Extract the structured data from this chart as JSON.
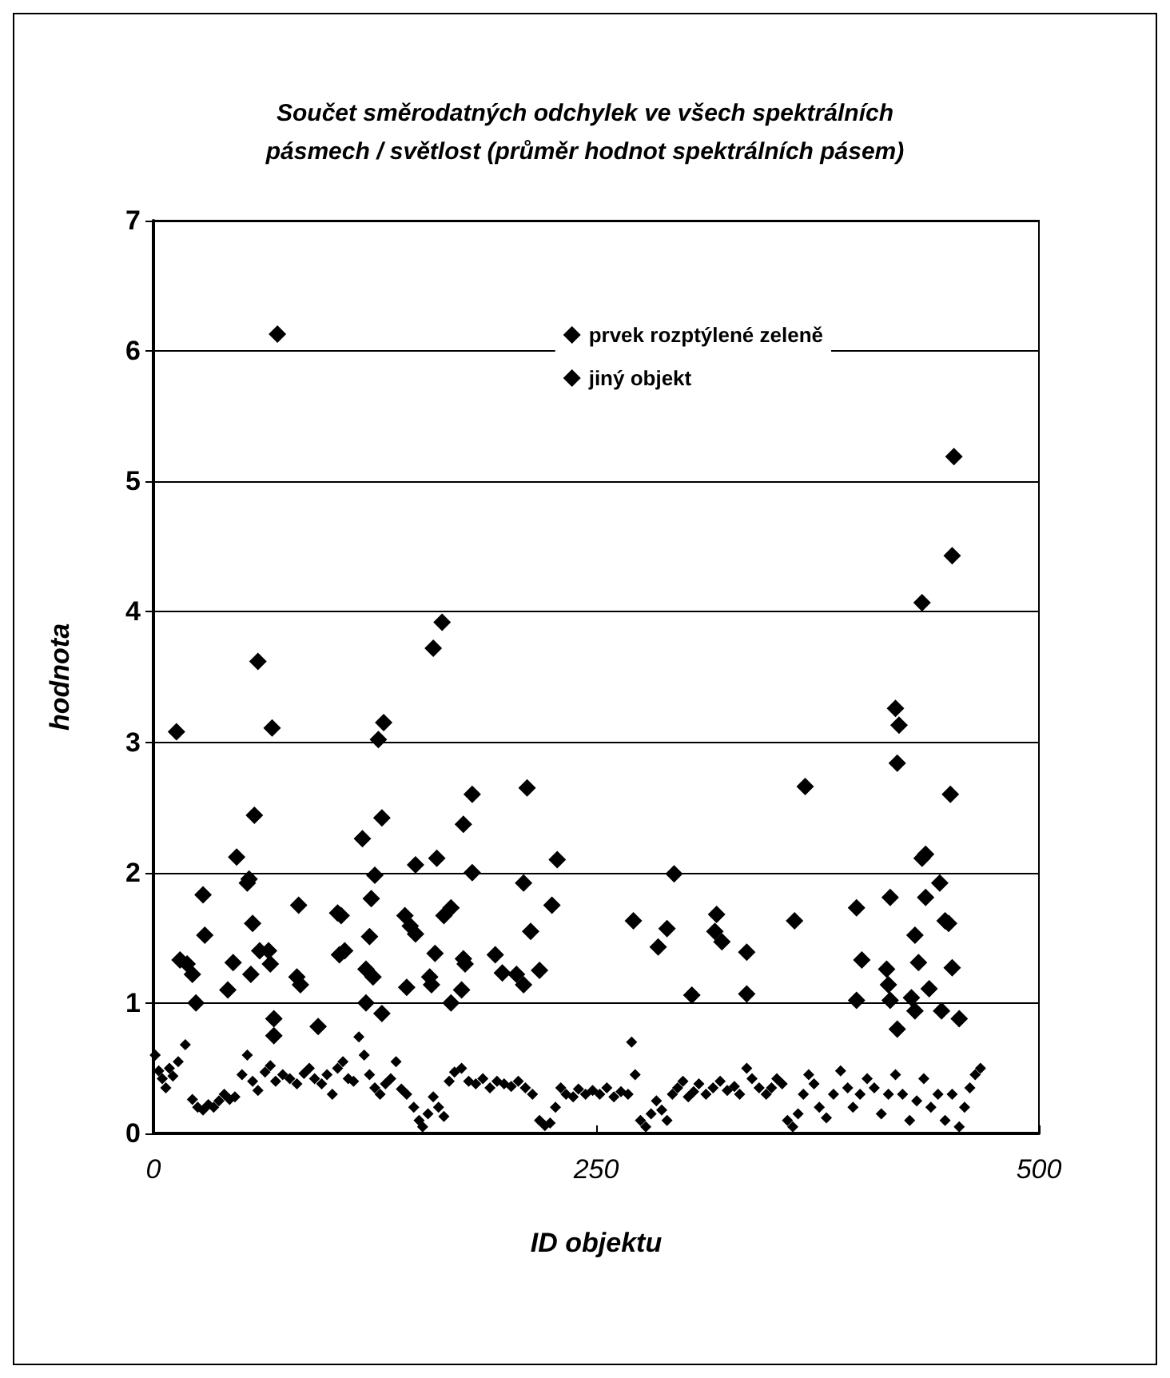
{
  "chart_data": {
    "type": "scatter",
    "title": "Součet směrodatných odchylek ve všech spektrálních\npásmech / světlost (průměr hodnot spektrálních pásem)",
    "xlabel": "ID objektu",
    "ylabel": "hodnota",
    "xlim": [
      0,
      500
    ],
    "xticks": [
      0,
      250,
      500
    ],
    "ylim": [
      0,
      7
    ],
    "yticks": [
      0,
      1,
      2,
      3,
      4,
      5,
      6,
      7
    ],
    "grid": "y",
    "legend": "top right",
    "marker": "diamond",
    "series": [
      {
        "name": "prvek rozptýlené zeleně",
        "color": "#000000",
        "x": [
          13,
          15,
          19,
          22,
          24,
          28,
          29,
          42,
          45,
          47,
          54,
          53,
          56,
          55,
          57,
          59,
          60,
          65,
          66,
          67,
          68,
          68,
          70,
          82,
          81,
          83,
          93,
          104,
          106,
          105,
          108,
          118,
          125,
          123,
          122,
          124,
          120,
          120,
          129,
          127,
          130,
          129,
          142,
          145,
          148,
          143,
          148,
          160,
          159,
          156,
          157,
          168,
          164,
          168,
          174,
          175,
          180,
          180,
          175,
          176,
          193,
          197,
          205,
          209,
          218,
          209,
          211,
          213,
          225,
          228,
          158,
          163,
          452,
          451,
          434,
          419,
          421,
          420,
          368,
          450,
          436,
          434,
          444,
          436,
          416,
          397,
          362,
          294,
          271,
          290,
          285,
          318,
          317,
          321,
          335,
          304,
          335,
          400,
          397,
          430,
          432,
          447,
          449,
          451,
          438,
          414,
          415,
          416,
          428,
          430,
          420,
          445,
          455
        ],
        "values": [
          3.08,
          1.33,
          1.3,
          1.22,
          1.0,
          1.83,
          1.52,
          1.1,
          1.31,
          2.12,
          1.95,
          1.92,
          1.61,
          1.22,
          2.44,
          3.62,
          1.4,
          1.4,
          1.3,
          3.11,
          0.88,
          0.75,
          6.13,
          1.75,
          1.2,
          1.14,
          0.82,
          1.69,
          1.67,
          1.37,
          1.4,
          2.26,
          1.98,
          1.8,
          1.51,
          1.2,
          1.26,
          1.0,
          0.92,
          3.02,
          3.15,
          2.42,
          1.67,
          1.59,
          1.53,
          1.12,
          2.06,
          2.11,
          1.38,
          1.2,
          1.14,
          1.0,
          1.67,
          1.73,
          1.1,
          2.37,
          2.6,
          2.0,
          1.34,
          1.3,
          1.37,
          1.23,
          1.22,
          1.14,
          1.25,
          1.92,
          2.65,
          1.55,
          1.75,
          2.1,
          3.72,
          3.92,
          5.19,
          4.43,
          4.07,
          3.26,
          3.13,
          2.84,
          2.66,
          2.6,
          2.14,
          2.11,
          1.92,
          1.81,
          1.81,
          1.73,
          1.63,
          1.99,
          1.63,
          1.57,
          1.43,
          1.68,
          1.55,
          1.47,
          1.39,
          1.06,
          1.07,
          1.33,
          1.02,
          1.52,
          1.31,
          1.63,
          1.61,
          1.27,
          1.11,
          1.26,
          1.14,
          1.02,
          1.04,
          0.94,
          0.8,
          0.94,
          0.88
        ]
      },
      {
        "name": "jiný objekt",
        "color": "#000000",
        "x": [
          1,
          3,
          5,
          7,
          9,
          11,
          14,
          18,
          22,
          25,
          28,
          31,
          34,
          37,
          40,
          43,
          46,
          50,
          53,
          56,
          59,
          63,
          66,
          69,
          73,
          77,
          81,
          85,
          88,
          91,
          95,
          98,
          101,
          104,
          107,
          110,
          113,
          116,
          119,
          122,
          125,
          128,
          131,
          134,
          137,
          140,
          143,
          147,
          150,
          152,
          155,
          158,
          161,
          164,
          167,
          170,
          174,
          178,
          182,
          186,
          190,
          194,
          198,
          202,
          206,
          210,
          214,
          218,
          221,
          224,
          227,
          230,
          233,
          237,
          240,
          244,
          248,
          252,
          256,
          260,
          264,
          268,
          270,
          272,
          275,
          278,
          281,
          284,
          287,
          290,
          293,
          296,
          299,
          302,
          305,
          308,
          312,
          316,
          320,
          324,
          328,
          331,
          335,
          338,
          342,
          346,
          349,
          352,
          355,
          358,
          361,
          364,
          367,
          370,
          373,
          376,
          380,
          384,
          388,
          392,
          395,
          399,
          403,
          407,
          411,
          415,
          419,
          423,
          427,
          431,
          435,
          439,
          443,
          447,
          451,
          455,
          458,
          461,
          464,
          467
        ],
        "values": [
          0.6,
          0.48,
          0.42,
          0.35,
          0.5,
          0.44,
          0.55,
          0.68,
          0.26,
          0.2,
          0.18,
          0.22,
          0.2,
          0.25,
          0.3,
          0.26,
          0.28,
          0.45,
          0.6,
          0.4,
          0.33,
          0.47,
          0.52,
          0.4,
          0.45,
          0.42,
          0.38,
          0.46,
          0.5,
          0.42,
          0.38,
          0.45,
          0.3,
          0.5,
          0.55,
          0.42,
          0.4,
          0.74,
          0.6,
          0.45,
          0.35,
          0.3,
          0.38,
          0.42,
          0.55,
          0.34,
          0.3,
          0.2,
          0.1,
          0.05,
          0.15,
          0.28,
          0.2,
          0.13,
          0.4,
          0.47,
          0.5,
          0.4,
          0.38,
          0.42,
          0.35,
          0.4,
          0.38,
          0.36,
          0.4,
          0.35,
          0.3,
          0.1,
          0.06,
          0.08,
          0.2,
          0.35,
          0.3,
          0.28,
          0.34,
          0.3,
          0.33,
          0.3,
          0.35,
          0.28,
          0.32,
          0.3,
          0.7,
          0.45,
          0.1,
          0.05,
          0.15,
          0.25,
          0.18,
          0.1,
          0.3,
          0.35,
          0.4,
          0.28,
          0.32,
          0.38,
          0.3,
          0.35,
          0.4,
          0.33,
          0.36,
          0.3,
          0.5,
          0.42,
          0.35,
          0.3,
          0.35,
          0.42,
          0.38,
          0.1,
          0.05,
          0.15,
          0.3,
          0.45,
          0.38,
          0.2,
          0.12,
          0.3,
          0.48,
          0.35,
          0.2,
          0.3,
          0.42,
          0.35,
          0.15,
          0.3,
          0.45,
          0.3,
          0.1,
          0.25,
          0.42,
          0.2,
          0.3,
          0.1,
          0.3,
          0.05,
          0.2,
          0.35,
          0.45,
          0.5
        ]
      }
    ]
  }
}
